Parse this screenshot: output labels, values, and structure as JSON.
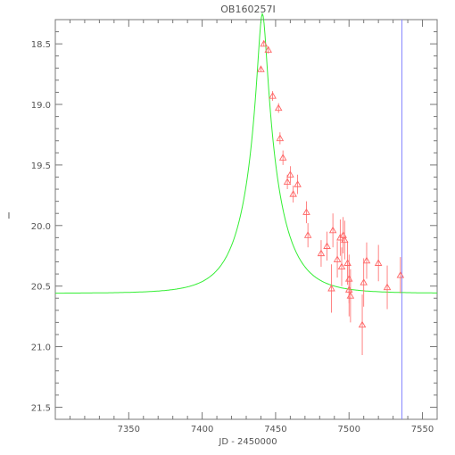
{
  "chart_data": {
    "type": "scatter",
    "title": "OB160257I",
    "xlabel": "JD - 2450000",
    "ylabel": "I",
    "xlim": [
      7300,
      7560
    ],
    "ylim": [
      21.6,
      18.3
    ],
    "y_inverted": true,
    "xticks": [
      7350,
      7400,
      7450,
      7500,
      7550
    ],
    "xtick_labels": [
      "7350",
      "7400",
      "7450",
      "7500",
      "7550"
    ],
    "yticks": [
      18.5,
      19.0,
      19.5,
      20.0,
      20.5,
      21.0,
      21.5
    ],
    "ytick_labels": [
      "18.5",
      "19.0",
      "19.5",
      "20.0",
      "20.5",
      "21.0",
      "21.5"
    ],
    "grid": false,
    "marker": "triangle-open",
    "colors": {
      "points": "#ff6666",
      "model": "#33ee33",
      "vline": "#8888ff",
      "axes": "#777777"
    },
    "vline_x": 7536,
    "model": {
      "type": "point-lens",
      "t0": 7441,
      "u0": 0.12,
      "tE": 24,
      "baseline_mag": 20.56
    },
    "points": [
      {
        "x": 7440,
        "y": 18.71,
        "err": 0.02
      },
      {
        "x": 7442,
        "y": 18.5,
        "err": 0.02
      },
      {
        "x": 7445,
        "y": 18.55,
        "err": 0.03
      },
      {
        "x": 7448,
        "y": 18.93,
        "err": 0.04
      },
      {
        "x": 7452,
        "y": 19.03,
        "err": 0.04
      },
      {
        "x": 7453,
        "y": 19.28,
        "err": 0.05
      },
      {
        "x": 7455,
        "y": 19.44,
        "err": 0.06
      },
      {
        "x": 7458,
        "y": 19.64,
        "err": 0.06
      },
      {
        "x": 7460,
        "y": 19.58,
        "err": 0.07
      },
      {
        "x": 7462,
        "y": 19.74,
        "err": 0.07
      },
      {
        "x": 7465,
        "y": 19.66,
        "err": 0.08
      },
      {
        "x": 7471,
        "y": 19.89,
        "err": 0.09
      },
      {
        "x": 7472,
        "y": 20.08,
        "err": 0.1
      },
      {
        "x": 7481,
        "y": 20.23,
        "err": 0.11
      },
      {
        "x": 7485,
        "y": 20.17,
        "err": 0.12
      },
      {
        "x": 7488,
        "y": 20.52,
        "err": 0.2
      },
      {
        "x": 7489,
        "y": 20.04,
        "err": 0.14
      },
      {
        "x": 7492,
        "y": 20.28,
        "err": 0.15
      },
      {
        "x": 7494,
        "y": 20.1,
        "err": 0.15
      },
      {
        "x": 7495,
        "y": 20.34,
        "err": 0.16
      },
      {
        "x": 7496,
        "y": 20.08,
        "err": 0.15
      },
      {
        "x": 7497,
        "y": 20.12,
        "err": 0.16
      },
      {
        "x": 7499,
        "y": 20.31,
        "err": 0.18
      },
      {
        "x": 7500,
        "y": 20.44,
        "err": 0.2
      },
      {
        "x": 7500,
        "y": 20.53,
        "err": 0.22
      },
      {
        "x": 7501,
        "y": 20.58,
        "err": 0.22
      },
      {
        "x": 7509,
        "y": 20.82,
        "err": 0.25
      },
      {
        "x": 7510,
        "y": 20.47,
        "err": 0.2
      },
      {
        "x": 7512,
        "y": 20.29,
        "err": 0.15
      },
      {
        "x": 7520,
        "y": 20.31,
        "err": 0.15
      },
      {
        "x": 7526,
        "y": 20.51,
        "err": 0.18
      },
      {
        "x": 7535,
        "y": 20.41,
        "err": 0.15
      }
    ]
  }
}
